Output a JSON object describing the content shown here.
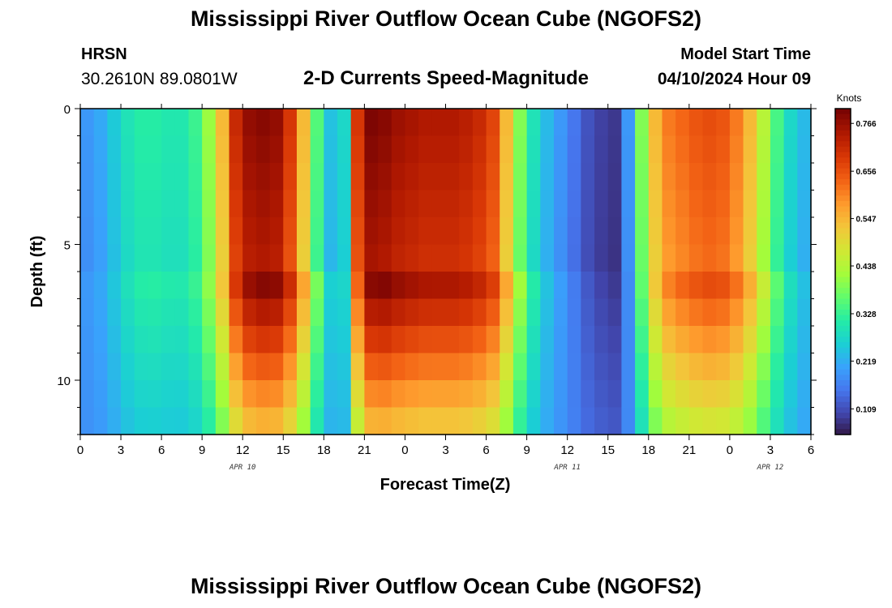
{
  "header": {
    "title": "Mississippi River Outflow Ocean Cube (NGOFS2)",
    "station_name": "HRSN",
    "station_coords": "30.2610N  89.0801W",
    "subtitle": "2-D Currents Speed-Magnitude",
    "model_start_label": "Model Start Time",
    "model_start_value": "04/10/2024 Hour 09"
  },
  "footer": {
    "title": "Mississippi River Outflow Ocean Cube (NGOFS2)"
  },
  "chart_data": {
    "type": "heatmap",
    "title": "2-D Currents Speed-Magnitude",
    "xlabel": "Forecast Time(Z)",
    "ylabel": "Depth (ft)",
    "x_tick_labels": [
      "0",
      "3",
      "6",
      "9",
      "12",
      "15",
      "18",
      "21",
      "0",
      "3",
      "6",
      "9",
      "12",
      "15",
      "18",
      "21",
      "0",
      "3",
      "6"
    ],
    "x_date_labels": [
      {
        "label": "APR 10",
        "hour_index": 12
      },
      {
        "label": "APR 11",
        "hour_index": 36
      },
      {
        "label": "APR 12",
        "hour_index": 51
      }
    ],
    "x_range_hours": [
      0,
      54
    ],
    "y_tick_labels": [
      "0",
      "5",
      "10"
    ],
    "y_range_ft": [
      0,
      12
    ],
    "colorbar": {
      "unit": "Knots",
      "min": 0.05,
      "max": 0.8,
      "tick_values": [
        "0.766",
        "0.656",
        "0.547",
        "0.438",
        "0.328",
        "0.219",
        "0.109"
      ],
      "colors": [
        "#30123b",
        "#4145ab",
        "#4675ed",
        "#39a2fc",
        "#1bcfd4",
        "#24eca6",
        "#61fc6c",
        "#a4fc3b",
        "#d1e834",
        "#f3c63a",
        "#fe9b2d",
        "#f36315",
        "#d93806",
        "#b11901",
        "#7a0403"
      ]
    },
    "depth_layers_ft": [
      0,
      1,
      2,
      3,
      4,
      5,
      6,
      7,
      8,
      9,
      10,
      11,
      12
    ],
    "surface_speed_knots_by_hour": [
      0.2,
      0.22,
      0.26,
      0.3,
      0.32,
      0.32,
      0.31,
      0.31,
      0.34,
      0.42,
      0.55,
      0.72,
      0.78,
      0.79,
      0.78,
      0.7,
      0.55,
      0.36,
      0.25,
      0.28,
      0.7,
      0.8,
      0.79,
      0.77,
      0.76,
      0.75,
      0.75,
      0.75,
      0.74,
      0.72,
      0.68,
      0.55,
      0.4,
      0.3,
      0.24,
      0.2,
      0.16,
      0.12,
      0.1,
      0.09,
      0.2,
      0.4,
      0.55,
      0.62,
      0.64,
      0.66,
      0.67,
      0.66,
      0.62,
      0.55,
      0.45,
      0.35,
      0.28,
      0.24,
      0.22
    ],
    "notes_visible": []
  }
}
